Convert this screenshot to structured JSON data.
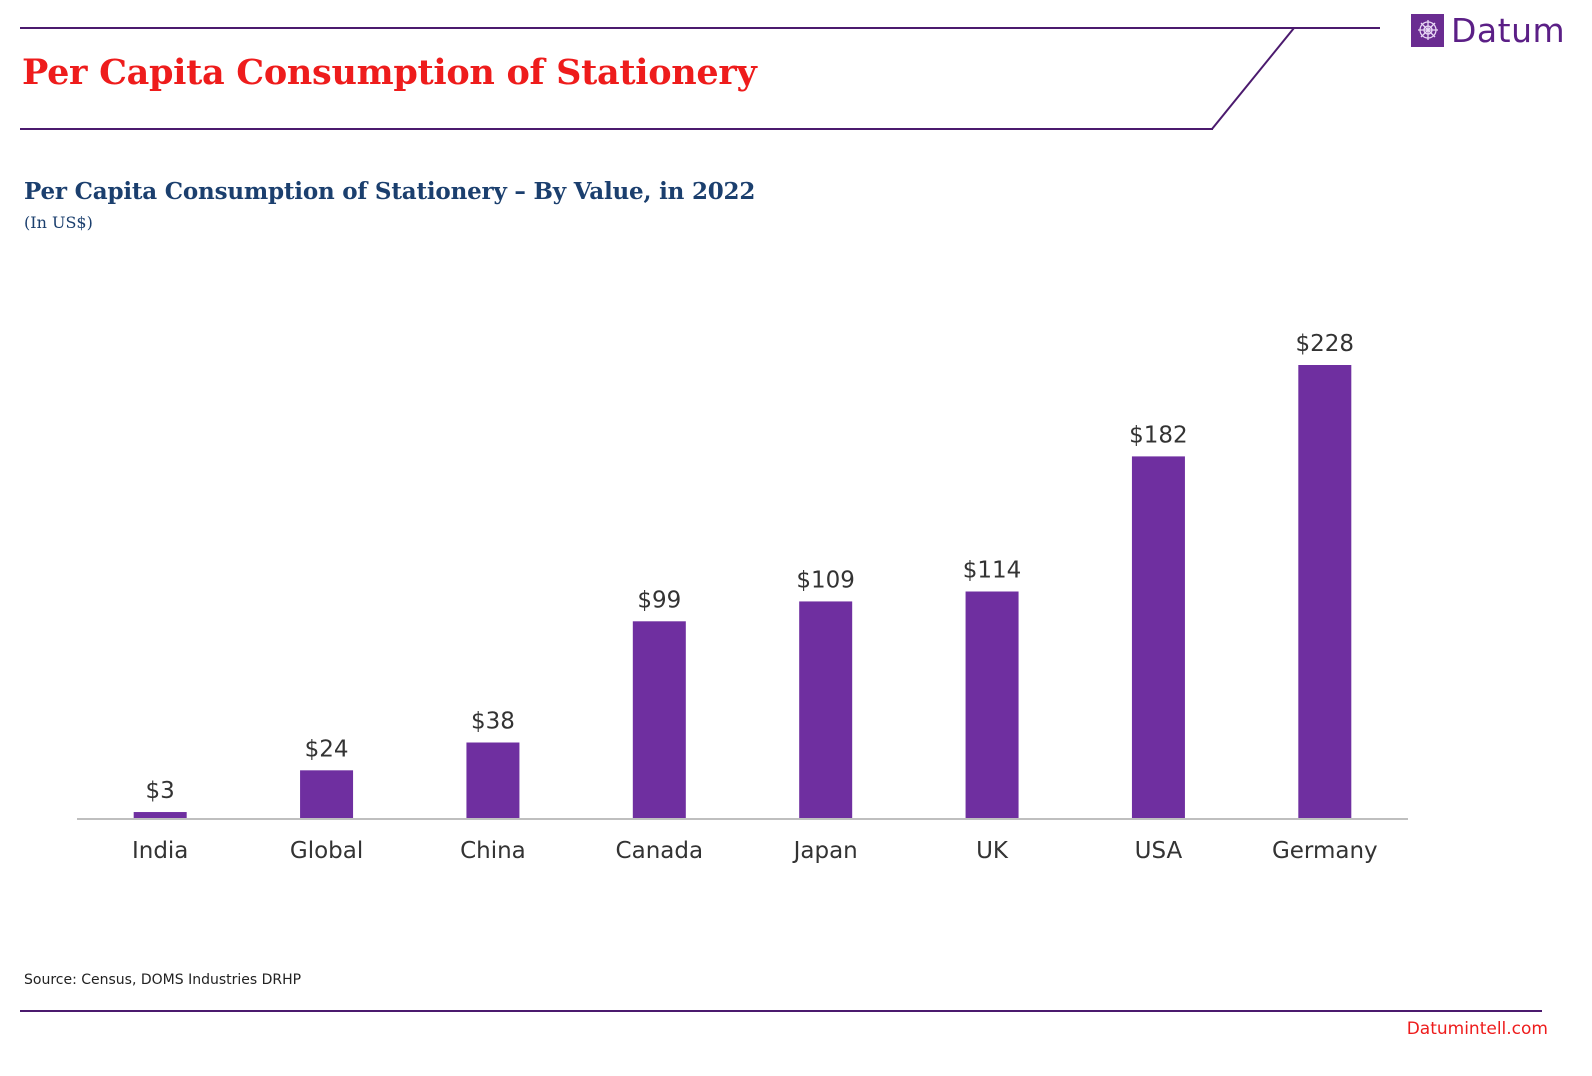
{
  "header": {
    "title": "Per Capita Consumption of Stationery",
    "logo_text": "Datum",
    "logo_icon": "datum-grid-icon"
  },
  "colors": {
    "bar": "#6f2fa0",
    "header_title": "#ee1c1c",
    "chart_title": "#1b3f6e",
    "rule": "#4b1a6e",
    "axis": "#bfbfbf",
    "label_text": "#333333"
  },
  "chart_data": {
    "type": "bar",
    "title": "Per Capita Consumption of Stationery – By Value, in 2022",
    "subtitle": "(In US$)",
    "categories": [
      "India",
      "Global",
      "China",
      "Canada",
      "Japan",
      "UK",
      "USA",
      "Germany"
    ],
    "values": [
      3,
      24,
      38,
      99,
      109,
      114,
      182,
      228
    ],
    "value_labels": [
      "$3",
      "$24",
      "$38",
      "$99",
      "$109",
      "$114",
      "$182",
      "$228"
    ],
    "ylim": [
      0,
      228
    ],
    "xlabel": "",
    "ylabel": "",
    "grid": false,
    "legend": "none"
  },
  "footer": {
    "source": "Source: Census, DOMS Industries DRHP",
    "website": "Datumintell.com"
  }
}
